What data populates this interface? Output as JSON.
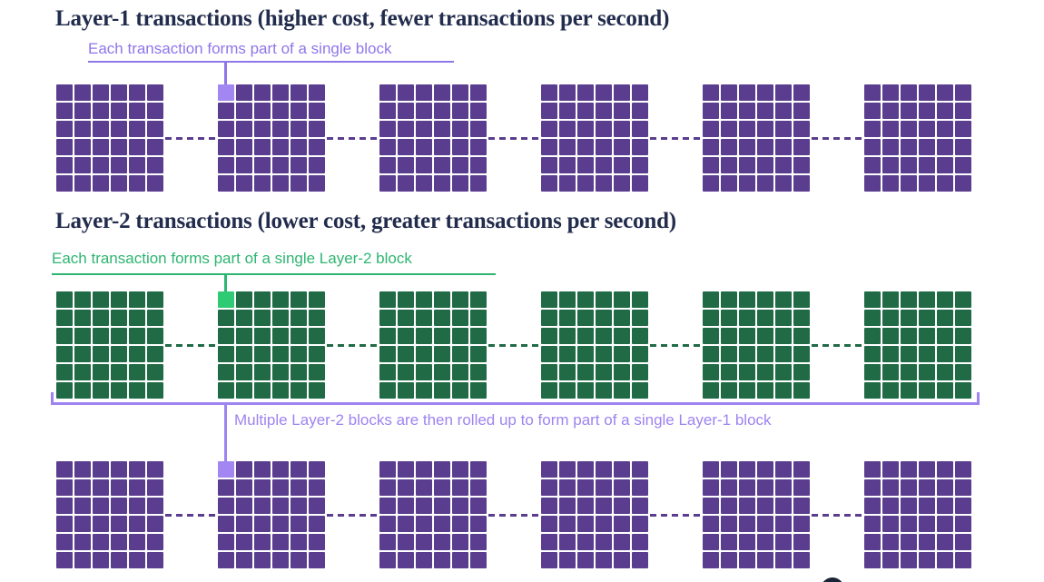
{
  "page": {
    "background": "#ffffff",
    "title_color": "#222c4d",
    "scroll_button_color": "#1b2336"
  },
  "sections": {
    "layer1": {
      "title": "Layer-1 transactions (higher cost, fewer transactions per second)",
      "annotation": "Each transaction forms part of a single block",
      "blocks": 6,
      "grid_rows": 6,
      "grid_cols": 6,
      "highlight_block_index": 1,
      "highlight_cell_index": 0,
      "colors": {
        "square": "#5a3d8e",
        "highlight": "#a287f2",
        "annotation": "#8f76ea"
      }
    },
    "layer2": {
      "title": "Layer-2 transactions (lower cost, greater transactions per second)",
      "annotation": "Each transaction forms part of a single Layer-2 block",
      "blocks": 6,
      "grid_rows": 6,
      "grid_cols": 6,
      "highlight_block_index": 1,
      "highlight_cell_index": 0,
      "colors": {
        "square": "#206b46",
        "highlight": "#2fca74",
        "annotation": "#2eb571"
      }
    },
    "rollup": {
      "annotation": "Multiple Layer-2 blocks are then rolled up to form part of a single Layer-1 block",
      "blocks": 6,
      "grid_rows": 6,
      "grid_cols": 6,
      "highlight_block_index": 1,
      "highlight_cell_index": 0,
      "colors": {
        "square": "#5a3d8e",
        "highlight": "#a287f2",
        "annotation": "#9d84f0"
      }
    }
  }
}
